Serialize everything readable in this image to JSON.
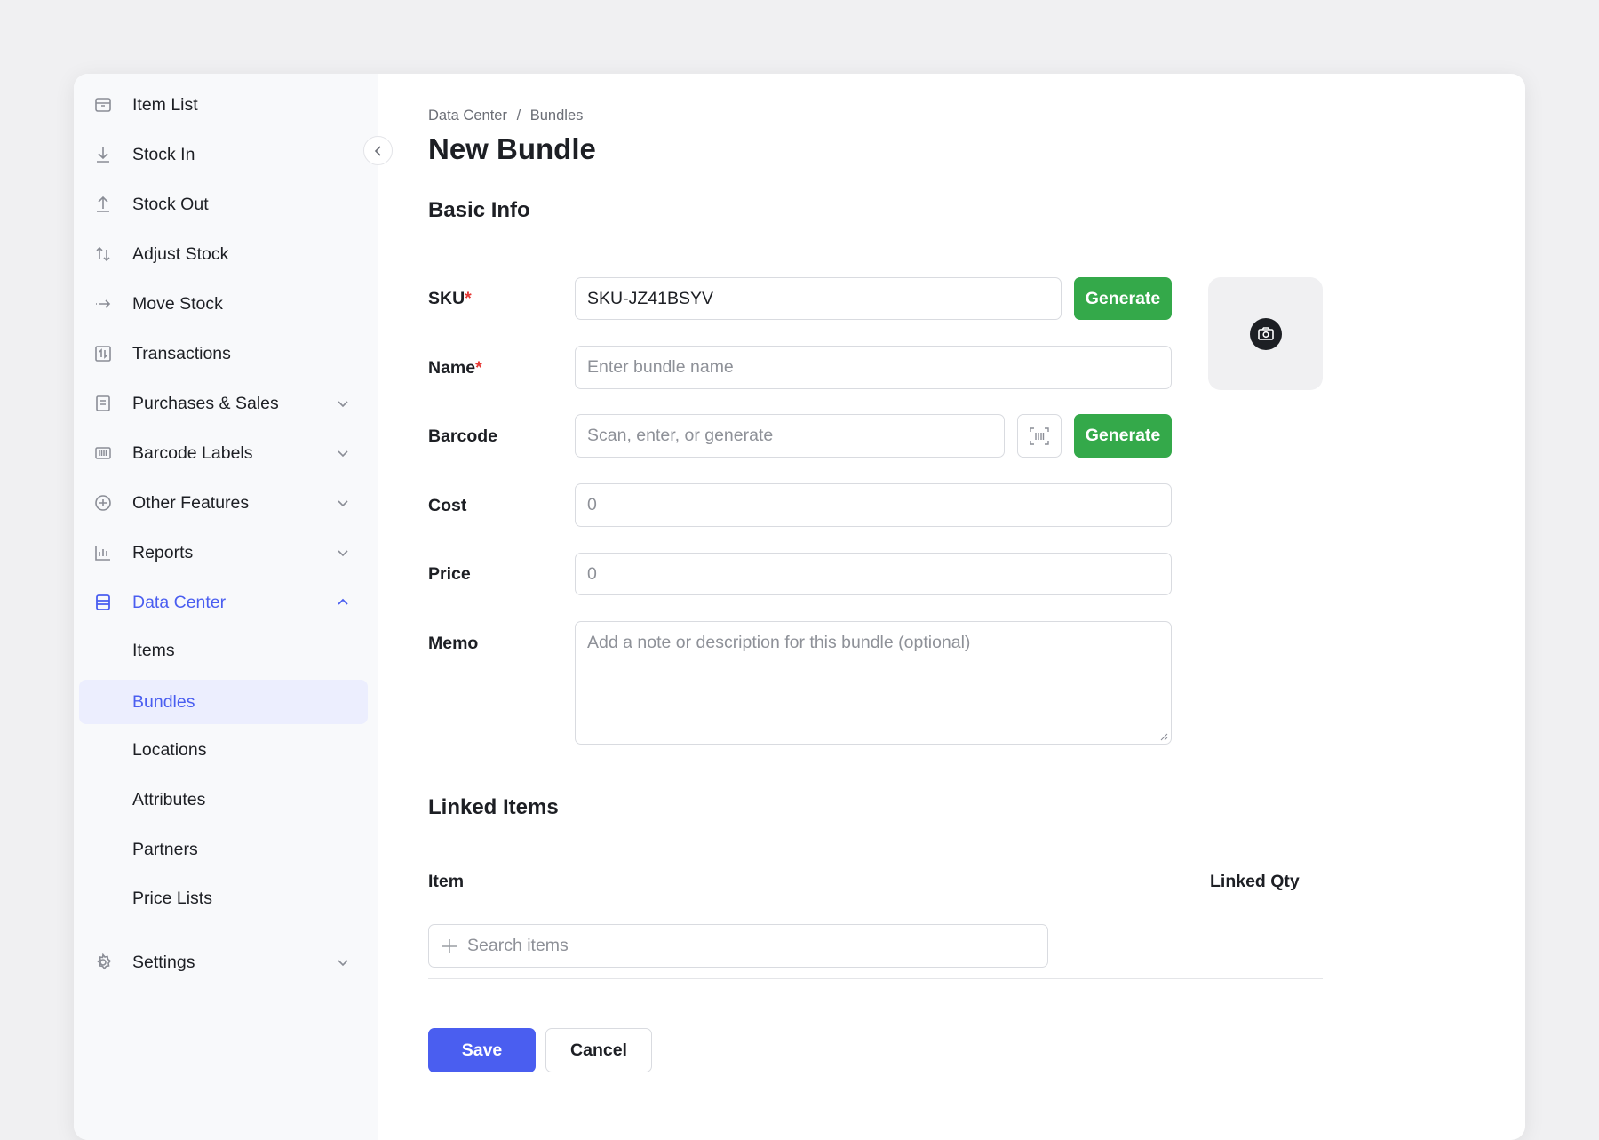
{
  "sidebar": {
    "items": [
      {
        "label": "Item List",
        "icon": "box-icon"
      },
      {
        "label": "Stock In",
        "icon": "download-icon"
      },
      {
        "label": "Stock Out",
        "icon": "upload-icon"
      },
      {
        "label": "Adjust Stock",
        "icon": "arrows-up-down-icon"
      },
      {
        "label": "Move Stock",
        "icon": "arrow-right-icon"
      },
      {
        "label": "Transactions",
        "icon": "transactions-icon"
      },
      {
        "label": "Purchases & Sales",
        "icon": "document-icon"
      },
      {
        "label": "Barcode Labels",
        "icon": "barcode-icon"
      },
      {
        "label": "Other Features",
        "icon": "plus-circle-icon"
      },
      {
        "label": "Reports",
        "icon": "bar-chart-icon"
      },
      {
        "label": "Data Center",
        "icon": "database-icon"
      }
    ],
    "sub_items": [
      "Items",
      "Bundles",
      "Locations",
      "Attributes",
      "Partners",
      "Price Lists"
    ],
    "settings": "Settings",
    "accent": "#4a5ef0"
  },
  "breadcrumb": {
    "parent": "Data Center",
    "sep": "/",
    "current": "Bundles"
  },
  "page_title": "New Bundle",
  "basic_info": {
    "title": "Basic Info",
    "sku": {
      "label": "SKU",
      "value": "SKU-JZ41BSYV",
      "generate": "Generate"
    },
    "name": {
      "label": "Name",
      "placeholder": "Enter bundle name"
    },
    "barcode": {
      "label": "Barcode",
      "placeholder": "Scan, enter, or generate",
      "generate": "Generate"
    },
    "cost": {
      "label": "Cost",
      "placeholder": "0"
    },
    "price": {
      "label": "Price",
      "placeholder": "0"
    },
    "memo": {
      "label": "Memo",
      "placeholder": "Add a note or description for this bundle (optional)"
    },
    "required_mark": "*"
  },
  "linked_items": {
    "title": "Linked Items",
    "col_item": "Item",
    "col_qty": "Linked Qty",
    "search_placeholder": "Search items"
  },
  "actions": {
    "save": "Save",
    "cancel": "Cancel"
  },
  "colors": {
    "green": "#34a94a",
    "primary": "#4a5ef0"
  }
}
